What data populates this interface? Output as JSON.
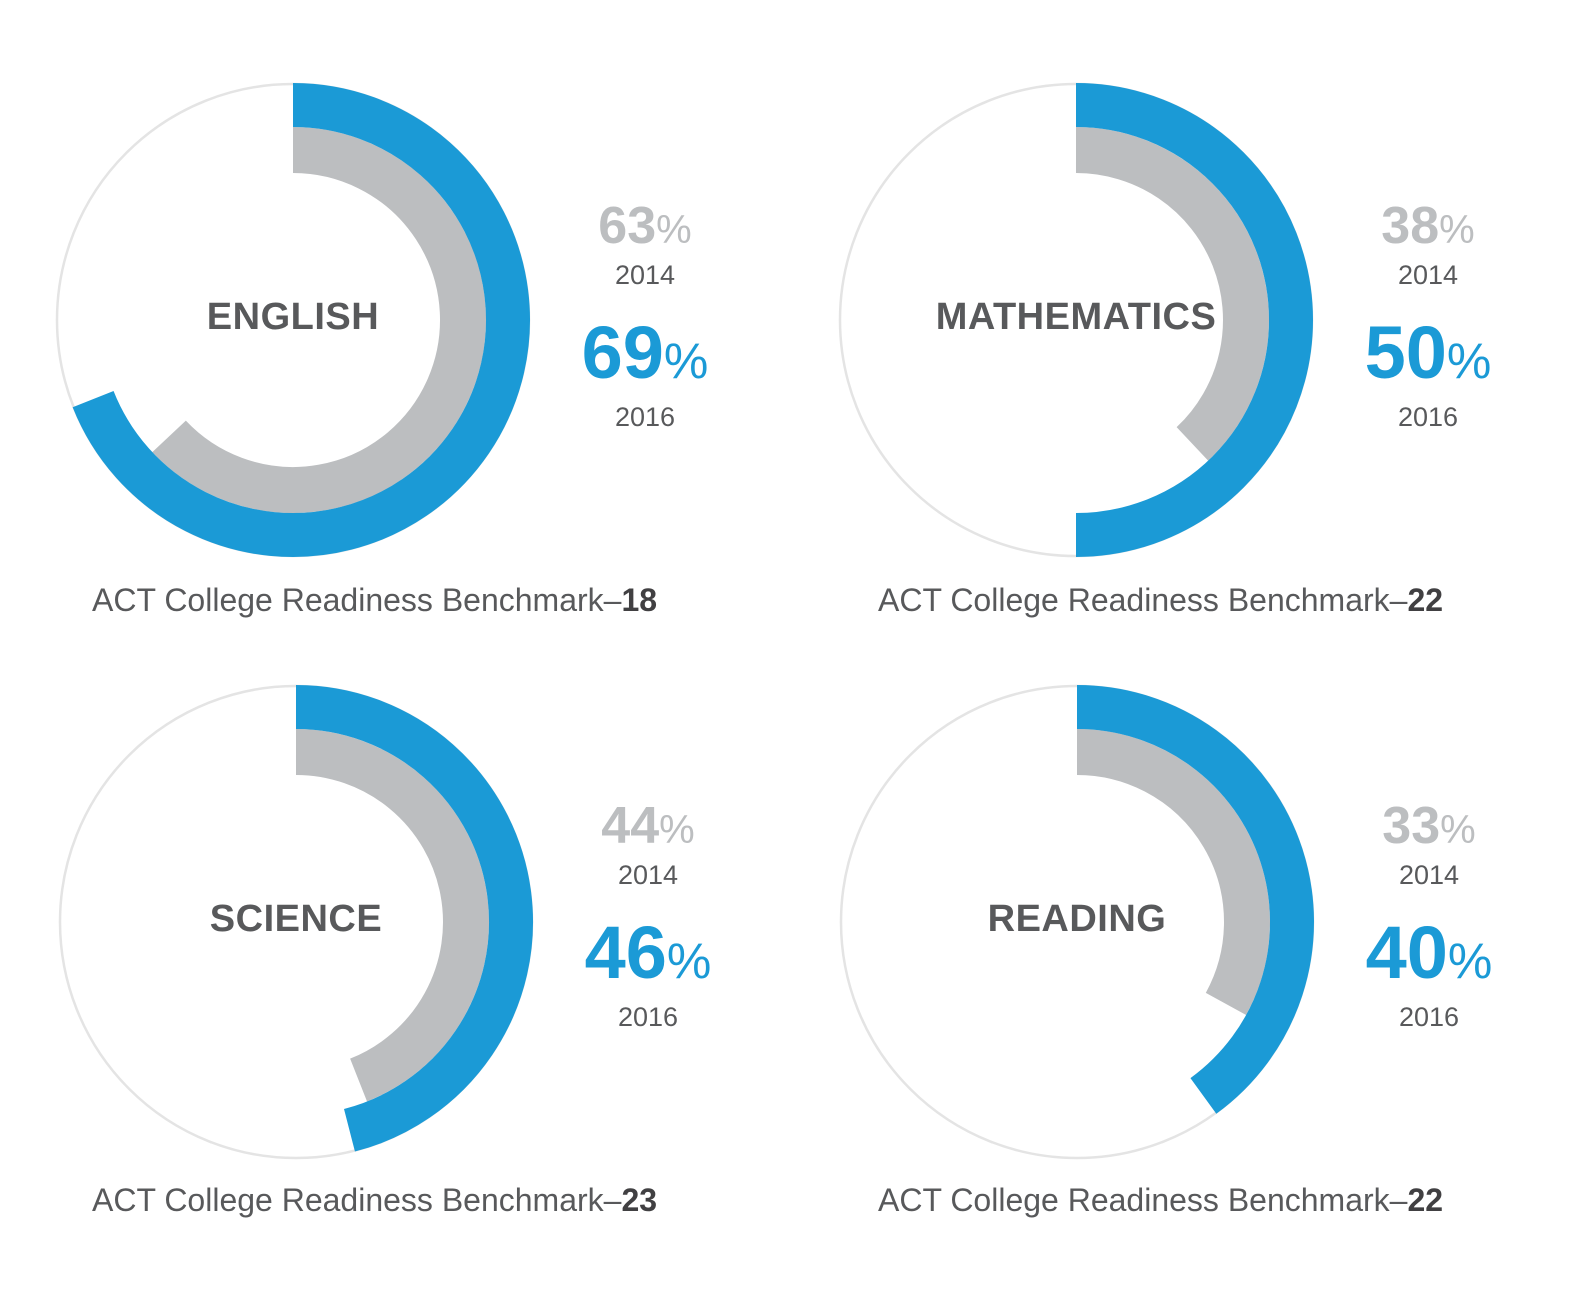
{
  "colors": {
    "blue": "#1b9ad6",
    "gray": "#bcbec0",
    "ring": "#e4e4e4",
    "text": "#58595b"
  },
  "percent_sign": "%",
  "chart_data": [
    {
      "type": "radial-bar",
      "subject": "ENGLISH",
      "series": [
        {
          "name": "2014",
          "value": 63
        },
        {
          "name": "2016",
          "value": 69
        }
      ],
      "benchmark_text": "ACT College Readiness Benchmark–",
      "benchmark_value": "18"
    },
    {
      "type": "radial-bar",
      "subject": "MATHEMATICS",
      "series": [
        {
          "name": "2014",
          "value": 38
        },
        {
          "name": "2016",
          "value": 50
        }
      ],
      "benchmark_text": "ACT College Readiness Benchmark–",
      "benchmark_value": "22"
    },
    {
      "type": "radial-bar",
      "subject": "SCIENCE",
      "series": [
        {
          "name": "2014",
          "value": 44
        },
        {
          "name": "2016",
          "value": 46
        }
      ],
      "benchmark_text": "ACT College Readiness Benchmark–",
      "benchmark_value": "23"
    },
    {
      "type": "radial-bar",
      "subject": "READING",
      "series": [
        {
          "name": "2014",
          "value": 33
        },
        {
          "name": "2016",
          "value": 40
        }
      ],
      "benchmark_text": "ACT College Readiness Benchmark–",
      "benchmark_value": "22"
    }
  ]
}
